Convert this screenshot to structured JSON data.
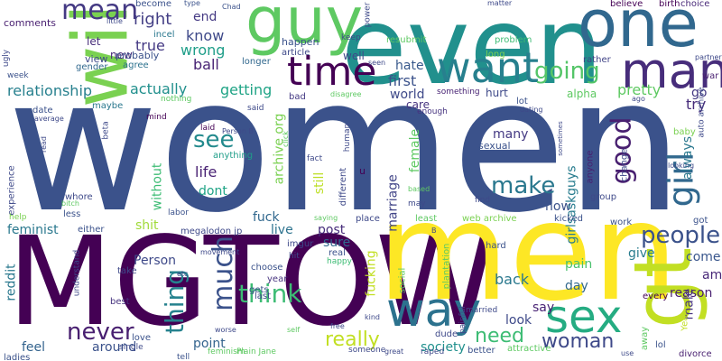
{
  "words": [
    {
      "text": "women",
      "color": "#3b528b"
    },
    {
      "text": "MGTOW",
      "color": "#440154"
    },
    {
      "text": "men",
      "color": "#fde725"
    },
    {
      "text": "even",
      "color": "#21908d"
    },
    {
      "text": "will",
      "color": "#7ad151"
    },
    {
      "text": "one",
      "color": "#31688e"
    },
    {
      "text": "guy",
      "color": "#5ec962"
    },
    {
      "text": "gt",
      "color": "#c2df23"
    },
    {
      "text": "man",
      "color": "#472d7b"
    },
    {
      "text": "want",
      "color": "#27808e"
    },
    {
      "text": "way",
      "color": "#2c728e"
    },
    {
      "text": "sex",
      "color": "#25ac82"
    },
    {
      "text": "time",
      "color": "#440154"
    },
    {
      "text": "girl",
      "color": "#31688e"
    },
    {
      "text": "mean",
      "color": "#443983"
    },
    {
      "text": "going",
      "color": "#54c568"
    },
    {
      "text": "see",
      "color": "#238a8d"
    },
    {
      "text": "much",
      "color": "#3b528b"
    },
    {
      "text": "think",
      "color": "#3dbc74"
    },
    {
      "text": "good",
      "color": "#481f70"
    },
    {
      "text": "people",
      "color": "#3b528b"
    },
    {
      "text": "never",
      "color": "#481f70"
    },
    {
      "text": "thing",
      "color": "#26828e"
    },
    {
      "text": "make",
      "color": "#2a788e"
    },
    {
      "text": "really",
      "color": "#c2df23"
    },
    {
      "text": "woman",
      "color": "#3e4989"
    },
    {
      "text": "need",
      "color": "#3dbc74"
    },
    {
      "text": "relationship",
      "color": "#27808e"
    },
    {
      "text": "right",
      "color": "#433e85"
    },
    {
      "text": "know",
      "color": "#3e4989"
    },
    {
      "text": "wrong",
      "color": "#1f9e89"
    },
    {
      "text": "true",
      "color": "#443983"
    },
    {
      "text": "end",
      "color": "#443983"
    },
    {
      "text": "pretty",
      "color": "#5ec962"
    },
    {
      "text": "actually",
      "color": "#21908d"
    },
    {
      "text": "getting",
      "color": "#20a486"
    },
    {
      "text": "ball",
      "color": "#482374"
    },
    {
      "text": "first",
      "color": "#3b528b"
    },
    {
      "text": "hate",
      "color": "#38598c"
    },
    {
      "text": "world",
      "color": "#3e4989"
    },
    {
      "text": "try",
      "color": "#472d7b"
    },
    {
      "text": "go",
      "color": "#443983"
    },
    {
      "text": "life",
      "color": "#482173"
    },
    {
      "text": "dont",
      "color": "#20a486"
    },
    {
      "text": "feminist",
      "color": "#2a788e"
    },
    {
      "text": "shit",
      "color": "#a0da39"
    },
    {
      "text": "fuck",
      "color": "#31688e"
    },
    {
      "text": "live",
      "color": "#2c728e"
    },
    {
      "text": "post",
      "color": "#472d7b"
    },
    {
      "text": "sure",
      "color": "#31688e"
    },
    {
      "text": "back",
      "color": "#2a788e"
    },
    {
      "text": "say",
      "color": "#482374"
    },
    {
      "text": "look",
      "color": "#3e4989"
    },
    {
      "text": "society",
      "color": "#21908d"
    },
    {
      "text": "feel",
      "color": "#33638d"
    },
    {
      "text": "around",
      "color": "#3b528b"
    },
    {
      "text": "point",
      "color": "#33638d"
    },
    {
      "text": "reddit",
      "color": "#2a788e"
    },
    {
      "text": "give",
      "color": "#287c8e"
    },
    {
      "text": "come",
      "color": "#39568c"
    },
    {
      "text": "reason",
      "color": "#481f70"
    },
    {
      "text": "day",
      "color": "#31688e"
    },
    {
      "text": "pain",
      "color": "#4ac16d"
    },
    {
      "text": "now",
      "color": "#3b528b"
    },
    {
      "text": "amp",
      "color": "#482878"
    },
    {
      "text": "Person",
      "color": "#3e4989"
    },
    {
      "text": "many",
      "color": "#443983"
    },
    {
      "text": "female",
      "color": "#5ec962"
    },
    {
      "text": "marriage",
      "color": "#414487"
    },
    {
      "text": "girlsaskguys",
      "color": "#287c8e"
    },
    {
      "text": "fucking",
      "color": "#c2df23"
    },
    {
      "text": "always",
      "color": "#2a788e"
    },
    {
      "text": "male",
      "color": "#46337f"
    },
    {
      "text": "without",
      "color": "#3dbc74"
    },
    {
      "text": "archive org",
      "color": "#7ad151"
    },
    {
      "text": "still",
      "color": "#bddf26"
    },
    {
      "text": "new",
      "color": "#482878"
    },
    {
      "text": "let",
      "color": "#472d7b"
    },
    {
      "text": "well",
      "color": "#3e4989"
    },
    {
      "text": "happen",
      "color": "#3b528b"
    },
    {
      "text": "comments",
      "color": "#481f70"
    },
    {
      "text": "view",
      "color": "#3e4989"
    },
    {
      "text": "gender",
      "color": "#31688e"
    },
    {
      "text": "probably",
      "color": "#3b528b"
    },
    {
      "text": "agree",
      "color": "#2c728e"
    },
    {
      "text": "longer",
      "color": "#31688e"
    },
    {
      "text": "article",
      "color": "#3e4989"
    },
    {
      "text": "incel",
      "color": "#2a788e"
    },
    {
      "text": "become",
      "color": "#3b528b"
    },
    {
      "text": "resubmit",
      "color": "#5ec962"
    },
    {
      "text": "problem",
      "color": "#3dbc74"
    },
    {
      "text": "long",
      "color": "#7ad151"
    },
    {
      "text": "rather",
      "color": "#414487"
    },
    {
      "text": "alpha",
      "color": "#5ec962"
    },
    {
      "text": "believe",
      "color": "#440154"
    },
    {
      "text": "birth",
      "color": "#440154"
    },
    {
      "text": "choice",
      "color": "#482878"
    },
    {
      "text": "war",
      "color": "#481f70"
    },
    {
      "text": "ugly",
      "color": "#3e4989"
    },
    {
      "text": "week",
      "color": "#3b528b"
    },
    {
      "text": "date",
      "color": "#3b528b"
    },
    {
      "text": "maybe",
      "color": "#2a788e"
    },
    {
      "text": "beta",
      "color": "#3e4989"
    },
    {
      "text": "bad",
      "color": "#443983"
    },
    {
      "text": "laid",
      "color": "#440154"
    },
    {
      "text": "said",
      "color": "#3e4989"
    },
    {
      "text": "anything",
      "color": "#1f9e89"
    },
    {
      "text": "care",
      "color": "#46337f"
    },
    {
      "text": "enough",
      "color": "#46337f"
    },
    {
      "text": "lot",
      "color": "#3b528b"
    },
    {
      "text": "sexual",
      "color": "#3b528b"
    },
    {
      "text": "hurt",
      "color": "#3e4989"
    },
    {
      "text": "something",
      "color": "#482374"
    },
    {
      "text": "baby",
      "color": "#7ad151"
    },
    {
      "text": "anyone",
      "color": "#481f70"
    },
    {
      "text": "change",
      "color": "#3e4989"
    },
    {
      "text": "whore",
      "color": "#3e4989"
    },
    {
      "text": "less",
      "color": "#3b528b"
    },
    {
      "text": "either",
      "color": "#3b528b"
    },
    {
      "text": "labor",
      "color": "#3b528b"
    },
    {
      "text": "imgur",
      "color": "#3e4989"
    },
    {
      "text": "real",
      "color": "#3b528b"
    },
    {
      "text": "happy",
      "color": "#3dbc74"
    },
    {
      "text": "hit",
      "color": "#3e4989"
    },
    {
      "text": "megalodon jp",
      "color": "#3e4989"
    },
    {
      "text": "year",
      "color": "#46337f"
    },
    {
      "text": "last",
      "color": "#3e4989"
    },
    {
      "text": "gets",
      "color": "#3b528b"
    },
    {
      "text": "choose",
      "color": "#3b528b"
    },
    {
      "text": "take",
      "color": "#3e4989"
    },
    {
      "text": "best",
      "color": "#46337f"
    },
    {
      "text": "love",
      "color": "#3b528b"
    },
    {
      "text": "single",
      "color": "#3e4989"
    },
    {
      "text": "ladies",
      "color": "#3b528b"
    },
    {
      "text": "tell",
      "color": "#3b528b"
    },
    {
      "text": "plantation",
      "color": "#5ec962"
    },
    {
      "text": "social",
      "color": "#5ec962"
    },
    {
      "text": "dude",
      "color": "#3e4989"
    },
    {
      "text": "better",
      "color": "#3b528b"
    },
    {
      "text": "married",
      "color": "#3e4989"
    },
    {
      "text": "attractive",
      "color": "#5ec962"
    },
    {
      "text": "painful",
      "color": "#3e4989"
    },
    {
      "text": "lol",
      "color": "#3b528b"
    },
    {
      "text": "away",
      "color": "#5ec962"
    },
    {
      "text": "divorce",
      "color": "#481f70"
    },
    {
      "text": "every",
      "color": "#440154"
    },
    {
      "text": "kicked",
      "color": "#3b528b"
    },
    {
      "text": "place",
      "color": "#3e4989"
    },
    {
      "text": "least",
      "color": "#5ec962"
    },
    {
      "text": "hard",
      "color": "#3b528b"
    },
    {
      "text": "find",
      "color": "#3e4989"
    },
    {
      "text": "web archive",
      "color": "#7ad151"
    },
    {
      "text": "group",
      "color": "#3e4989"
    },
    {
      "text": "work",
      "color": "#3b528b"
    },
    {
      "text": "got",
      "color": "#3b528b"
    },
    {
      "text": "auto archive",
      "color": "#3e4989"
    },
    {
      "text": "experience",
      "color": "#3e4989"
    },
    {
      "text": "understand",
      "color": "#3e4989"
    },
    {
      "text": "help",
      "color": "#7ad151"
    },
    {
      "text": "u",
      "color": "#440154"
    },
    {
      "text": "different",
      "color": "#3e4989"
    },
    {
      "text": "fact",
      "color": "#3e4989"
    },
    {
      "text": "human",
      "color": "#3e4989"
    },
    {
      "text": "Yeah",
      "color": "#c2df23"
    },
    {
      "text": "raped",
      "color": "#3e4989"
    },
    {
      "text": "someone",
      "color": "#3e4989"
    },
    {
      "text": "feminism",
      "color": "#5ec962"
    },
    {
      "text": "Plain Jane",
      "color": "#5ec962"
    },
    {
      "text": "mind",
      "color": "#440154"
    },
    {
      "text": "nothing",
      "color": "#5ec962"
    },
    {
      "text": "keep",
      "color": "#3e4989"
    },
    {
      "text": "power",
      "color": "#3e4989"
    },
    {
      "text": "type",
      "color": "#3b528b"
    },
    {
      "text": "Chad",
      "color": "#3b528b"
    },
    {
      "text": "matter",
      "color": "#3e4989"
    },
    {
      "text": "little",
      "color": "#3e4989"
    },
    {
      "text": "sometimes",
      "color": "#3e4989"
    },
    {
      "text": "looking",
      "color": "#3e4989"
    },
    {
      "text": "partner",
      "color": "#3e4989"
    },
    {
      "text": "average",
      "color": "#3e4989"
    },
    {
      "text": "read",
      "color": "#3e4989"
    },
    {
      "text": "movement",
      "color": "#3e4989"
    },
    {
      "text": "etc",
      "color": "#3e4989"
    },
    {
      "text": "free",
      "color": "#3e4989"
    },
    {
      "text": "great",
      "color": "#3e4989"
    },
    {
      "text": "saying",
      "color": "#5ec962"
    },
    {
      "text": "self",
      "color": "#5ec962"
    },
    {
      "text": "kind",
      "color": "#3e4989"
    },
    {
      "text": "Person B",
      "color": "#3e4989"
    },
    {
      "text": "disagree",
      "color": "#5ec962"
    },
    {
      "text": "seen",
      "color": "#3e4989"
    },
    {
      "text": "dating",
      "color": "#3e4989"
    },
    {
      "text": "use",
      "color": "#3e4989"
    },
    {
      "text": "click",
      "color": "#5ec962"
    },
    {
      "text": "ago",
      "color": "#3e4989"
    },
    {
      "text": "bitch",
      "color": "#5ec962"
    },
    {
      "text": "based",
      "color": "#5ec962"
    },
    {
      "text": "worse",
      "color": "#3e4989"
    },
    {
      "text": "B",
      "color": "#3e4989"
    },
    {
      "text": "may",
      "color": "#3e4989"
    }
  ]
}
